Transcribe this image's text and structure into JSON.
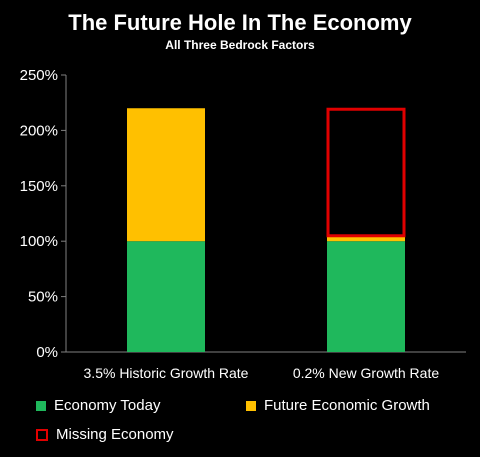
{
  "chart_data": {
    "type": "bar",
    "stacked": true,
    "title": "The Future Hole In The Economy",
    "subtitle": "All Three Bedrock Factors",
    "categories": [
      "3.5% Historic Growth Rate",
      "0.2% New Growth Rate"
    ],
    "series": [
      {
        "name": "Economy Today",
        "values": [
          100,
          100
        ],
        "color": "#1fb85c",
        "style": "filled"
      },
      {
        "name": "Future Economic Growth",
        "values": [
          120,
          4
        ],
        "color": "#ffc000",
        "style": "filled"
      },
      {
        "name": "Missing Economy",
        "values": [
          0,
          116
        ],
        "color": "#e00000",
        "style": "outline"
      }
    ],
    "yticks": [
      "0%",
      "50%",
      "100%",
      "150%",
      "200%",
      "250%"
    ],
    "ylim": [
      0,
      250
    ],
    "grid": false,
    "legend_position": "bottom"
  }
}
